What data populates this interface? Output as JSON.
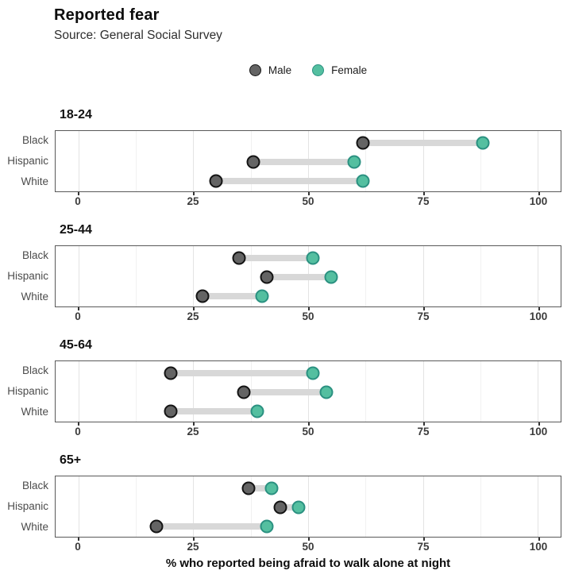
{
  "header": {
    "title": "Reported fear",
    "subtitle": "Source: General Social Survey"
  },
  "legend": {
    "items": [
      {
        "name": "male",
        "label": "Male",
        "fill": "#646464",
        "stroke": "#141414"
      },
      {
        "name": "female",
        "label": "Female",
        "fill": "#54BFA0",
        "stroke": "#2B9181"
      }
    ],
    "position": "top-center"
  },
  "chart_data": {
    "type": "scatter",
    "chart_style": "dumbbell",
    "title": "Reported fear",
    "subtitle": "Source: General Social Survey",
    "xlabel": "% who reported being afraid to walk alone at night",
    "ylabel": "",
    "x_domain": [
      -5,
      105
    ],
    "x_ticks": [
      0,
      25,
      50,
      75,
      100
    ],
    "x_minor_gridlines": [
      12.5,
      37.5,
      62.5,
      87.5
    ],
    "grid": true,
    "legend_position": "top-center",
    "categories": [
      "Black",
      "Hispanic",
      "White"
    ],
    "series_names": [
      "Male",
      "Female"
    ],
    "colors": {
      "male_fill": "#646464",
      "male_stroke": "#141414",
      "female_fill": "#54BFA0",
      "female_stroke": "#2B9181",
      "connector": "#D8D8D8"
    },
    "facets": [
      {
        "label": "18-24",
        "rows": [
          {
            "category": "Black",
            "male": 62,
            "female": 88
          },
          {
            "category": "Hispanic",
            "male": 38,
            "female": 60
          },
          {
            "category": "White",
            "male": 30,
            "female": 62
          }
        ]
      },
      {
        "label": "25-44",
        "rows": [
          {
            "category": "Black",
            "male": 35,
            "female": 51
          },
          {
            "category": "Hispanic",
            "male": 41,
            "female": 55
          },
          {
            "category": "White",
            "male": 27,
            "female": 40
          }
        ]
      },
      {
        "label": "45-64",
        "rows": [
          {
            "category": "Black",
            "male": 20,
            "female": 51
          },
          {
            "category": "Hispanic",
            "male": 36,
            "female": 54
          },
          {
            "category": "White",
            "male": 20,
            "female": 39
          }
        ]
      },
      {
        "label": "65+",
        "rows": [
          {
            "category": "Black",
            "male": 37,
            "female": 42
          },
          {
            "category": "Hispanic",
            "male": 44,
            "female": 48
          },
          {
            "category": "White",
            "male": 17,
            "female": 41
          }
        ]
      }
    ]
  }
}
